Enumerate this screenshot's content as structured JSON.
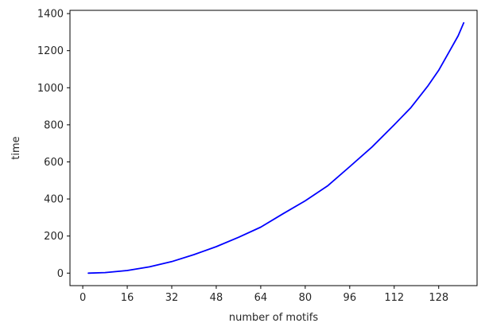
{
  "chart_data": {
    "type": "line",
    "xlabel": "number of motifs",
    "ylabel": "time",
    "xlim": [
      -4.6,
      141.8
    ],
    "ylim": [
      -67.5,
      1417.5
    ],
    "xticks": [
      0,
      16,
      32,
      48,
      64,
      80,
      96,
      112,
      128
    ],
    "yticks": [
      0,
      200,
      400,
      600,
      800,
      1000,
      1200,
      1400
    ],
    "grid": false,
    "series": [
      {
        "color": "#0000ff",
        "x": [
          2,
          8,
          16,
          24,
          32,
          40,
          48,
          56,
          64,
          72,
          80,
          88,
          96,
          104,
          112,
          118,
          124,
          128,
          132,
          135,
          137
        ],
        "y": [
          0,
          3,
          14,
          34,
          62,
          100,
          143,
          193,
          248,
          320,
          390,
          470,
          574,
          680,
          800,
          893,
          1007,
          1094,
          1200,
          1280,
          1350
        ]
      }
    ]
  }
}
